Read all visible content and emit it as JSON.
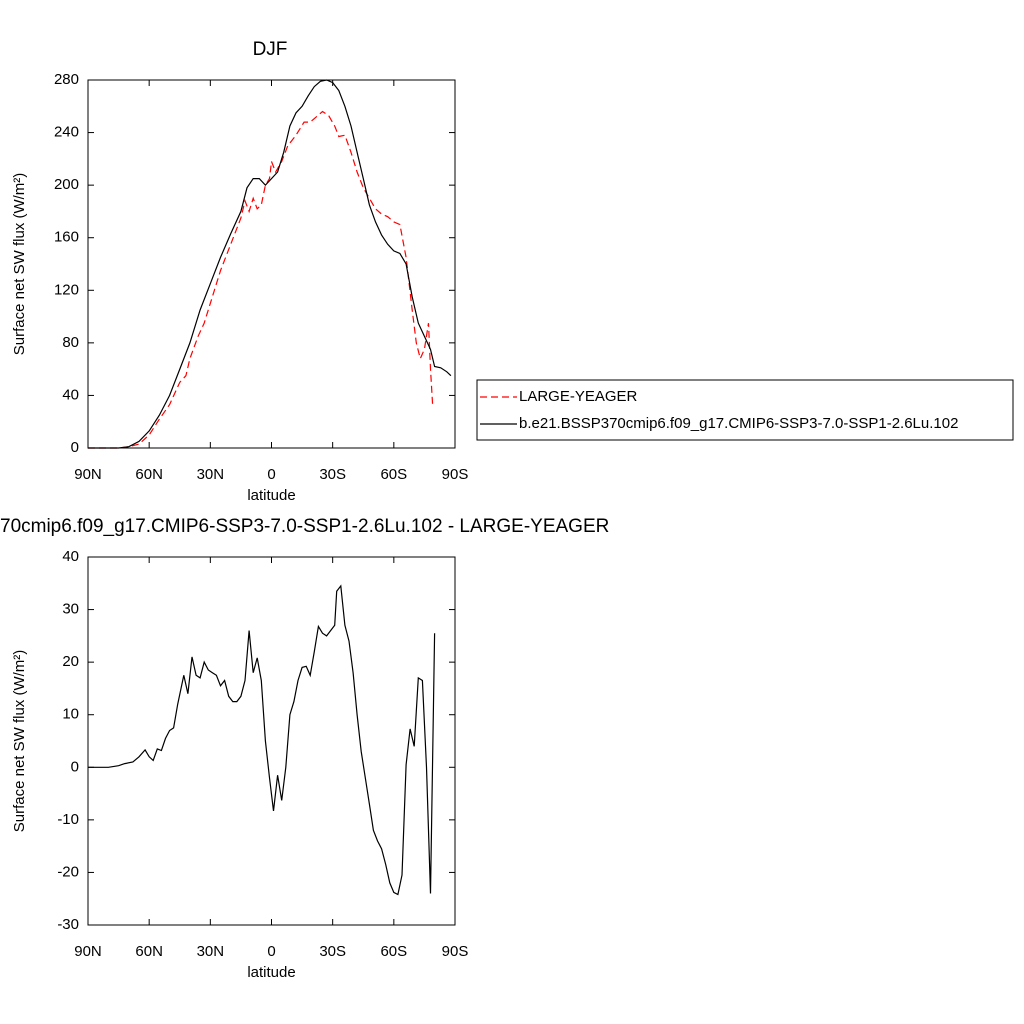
{
  "chart_data": [
    {
      "type": "line",
      "title": "DJF",
      "x_label": "latitude",
      "y_label": "Surface net SW flux (W/m²)",
      "xlim": [
        90,
        -90
      ],
      "ylim": [
        0,
        280
      ],
      "xticks": [
        {
          "value": 90,
          "label": "90N"
        },
        {
          "value": 60,
          "label": "60N"
        },
        {
          "value": 30,
          "label": "30N"
        },
        0,
        {
          "value": -30,
          "label": "30S"
        },
        {
          "value": -60,
          "label": "60S"
        },
        {
          "value": -90,
          "label": "90S"
        }
      ],
      "yticks": [
        0,
        40,
        80,
        120,
        160,
        200,
        240,
        280
      ],
      "legend": "right",
      "series": [
        {
          "name": "LARGE-YEAGER",
          "color": "#ff0000",
          "dashed": true,
          "x": [
            90,
            75,
            70,
            65,
            60,
            55,
            50,
            45,
            42,
            40,
            36,
            33,
            30,
            25,
            20,
            15,
            13,
            11,
            9,
            7,
            5,
            3,
            1,
            0,
            -2,
            -5,
            -8,
            -12,
            -16,
            -19,
            -22,
            -25,
            -28,
            -31,
            -33,
            -36,
            -39,
            -42,
            -45,
            -48,
            -51,
            -54,
            -57,
            -60,
            -63,
            -66,
            -69,
            -71,
            -73,
            -75,
            -77,
            -78,
            -79
          ],
          "values": [
            0,
            0,
            1,
            3,
            10,
            22,
            33,
            50,
            55,
            68,
            85,
            95,
            110,
            135,
            155,
            175,
            188,
            180,
            190,
            182,
            185,
            200,
            205,
            218,
            210,
            218,
            230,
            238,
            248,
            248,
            252,
            256,
            253,
            245,
            237,
            238,
            225,
            210,
            198,
            190,
            182,
            178,
            176,
            172,
            170,
            145,
            105,
            80,
            68,
            75,
            95,
            60,
            33
          ]
        },
        {
          "name": "b.e21.BSSP370cmip6.f09_g17.CMIP6-SSP3-7.0-SSP1-2.6Lu.102",
          "color": "#000000",
          "dashed": false,
          "x": [
            90,
            75,
            70,
            65,
            60,
            55,
            50,
            45,
            40,
            35,
            30,
            25,
            20,
            15,
            12,
            9,
            6,
            3,
            0,
            -3,
            -6,
            -9,
            -12,
            -15,
            -18,
            -21,
            -24,
            -27,
            -30,
            -33,
            -36,
            -39,
            -42,
            -45,
            -48,
            -51,
            -54,
            -57,
            -60,
            -63,
            -66,
            -69,
            -72,
            -75,
            -78,
            -80,
            -83,
            -86,
            -88
          ],
          "values": [
            0,
            0,
            1,
            5,
            13,
            25,
            40,
            60,
            80,
            105,
            125,
            145,
            163,
            180,
            198,
            205,
            205,
            200,
            205,
            210,
            225,
            245,
            255,
            260,
            268,
            275,
            279,
            280,
            278,
            272,
            260,
            245,
            225,
            205,
            185,
            172,
            162,
            155,
            150,
            148,
            140,
            115,
            95,
            85,
            75,
            62,
            61,
            58,
            55
          ]
        }
      ]
    },
    {
      "type": "line",
      "title": "70cmip6.f09_g17.CMIP6-SSP3-7.0-SSP1-2.6Lu.102 - LARGE-YEAGER",
      "x_label": "latitude",
      "y_label": "Surface net SW flux (W/m²)",
      "xlim": [
        90,
        -90
      ],
      "ylim": [
        -30,
        40
      ],
      "xticks": [
        {
          "value": 90,
          "label": "90N"
        },
        {
          "value": 60,
          "label": "60N"
        },
        {
          "value": 30,
          "label": "30N"
        },
        0,
        {
          "value": -30,
          "label": "30S"
        },
        {
          "value": -60,
          "label": "60S"
        },
        {
          "value": -90,
          "label": "90S"
        }
      ],
      "yticks": [
        -30,
        -20,
        -10,
        0,
        10,
        20,
        30,
        40
      ],
      "series": [
        {
          "color": "#000000",
          "dashed": false,
          "x": [
            90,
            80,
            75,
            72,
            68,
            65,
            62,
            60,
            58,
            56,
            54,
            52,
            50,
            48,
            46,
            43,
            41,
            39,
            37,
            35,
            33,
            31,
            29,
            27,
            25,
            23,
            21,
            19,
            17,
            15,
            13,
            11,
            9,
            7,
            5,
            3,
            1,
            -1,
            -3,
            -5,
            -7,
            -9,
            -11,
            -13,
            -15,
            -17,
            -19,
            -21,
            -23,
            -25,
            -27,
            -29,
            -31,
            -32,
            -34,
            -36,
            -38,
            -40,
            -42,
            -44,
            -46,
            -48,
            -50,
            -52,
            -54,
            -56,
            -58,
            -60,
            -62,
            -64,
            -66,
            -68,
            -70,
            -72,
            -74,
            -76,
            -78,
            -80
          ],
          "values": [
            0,
            0,
            0.3,
            0.7,
            1,
            2,
            3.3,
            2,
            1.3,
            3.5,
            3.2,
            5.5,
            7,
            7.5,
            12,
            17.5,
            14,
            21,
            17.5,
            17,
            20,
            18.5,
            18,
            17.5,
            15.5,
            16.5,
            13.5,
            12.5,
            12.5,
            13.5,
            16.5,
            26,
            18,
            20.8,
            16.5,
            5,
            -2,
            -8.3,
            -1.5,
            -6.3,
            0,
            10,
            12.5,
            16.5,
            19,
            19.2,
            17.5,
            22,
            26.8,
            25.5,
            25,
            26,
            27,
            33.5,
            34.5,
            27,
            24,
            18,
            10,
            3,
            -2,
            -7,
            -12,
            -14,
            -15.5,
            -18.5,
            -22,
            -23.8,
            -24.2,
            -20.5,
            0.5,
            7.3,
            4,
            17,
            16.5,
            0,
            -24,
            25.5
          ]
        }
      ]
    }
  ]
}
